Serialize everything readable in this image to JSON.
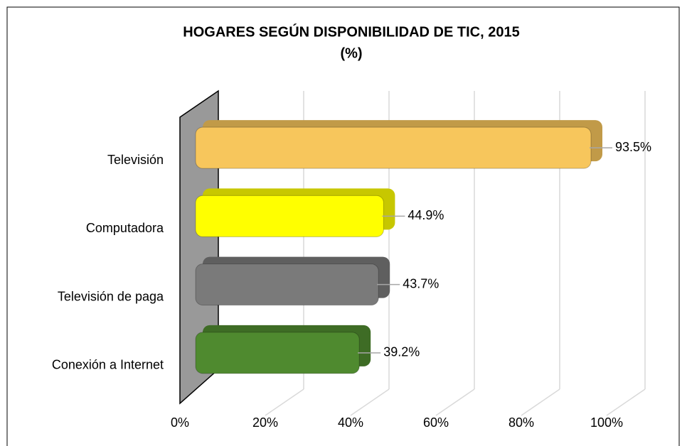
{
  "chart_data": {
    "type": "bar",
    "orientation": "horizontal",
    "title": "HOGARES SEGÚN DISPONIBILIDAD DE TIC, 2015",
    "subtitle": "(%)",
    "categories": [
      "Televisión",
      "Computadora",
      "Televisión de paga",
      "Conexión a Internet"
    ],
    "values": [
      93.5,
      44.9,
      43.7,
      39.2
    ],
    "value_labels": [
      "93.5%",
      "44.9%",
      "43.7%",
      "39.2%"
    ],
    "colors": [
      "#f7c65c",
      "#ffff00",
      "#7a7a7a",
      "#4f8a2f"
    ],
    "xlim": [
      0,
      100
    ],
    "xticks": [
      {
        "value": 0,
        "label": "0%"
      },
      {
        "value": 20,
        "label": "20%"
      },
      {
        "value": 40,
        "label": "40%"
      },
      {
        "value": 60,
        "label": "60%"
      },
      {
        "value": 80,
        "label": "80%"
      },
      {
        "value": 100,
        "label": "100%"
      }
    ],
    "grid": true
  }
}
